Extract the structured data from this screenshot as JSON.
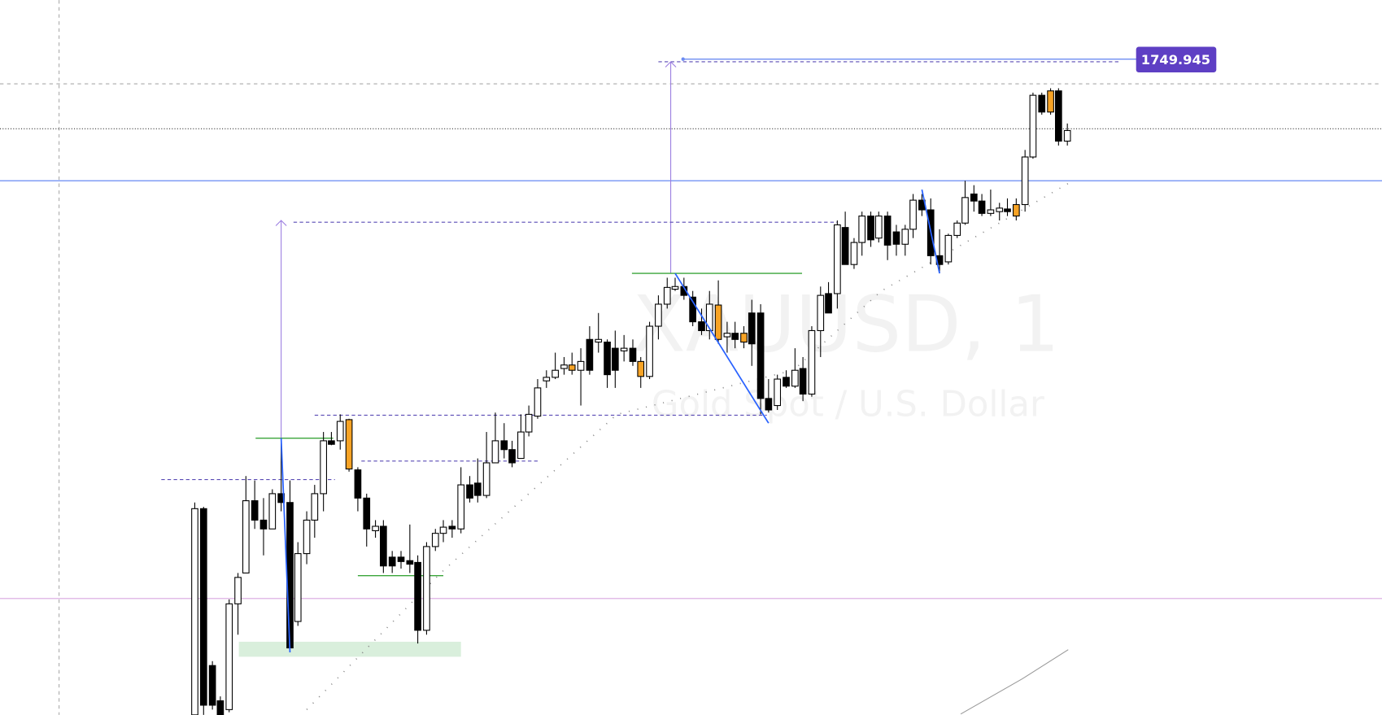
{
  "chart": {
    "price_label": "1749.945",
    "symbol": "XAUUSD, 1",
    "description": "Gold Spot / U.S. Dollar"
  }
}
